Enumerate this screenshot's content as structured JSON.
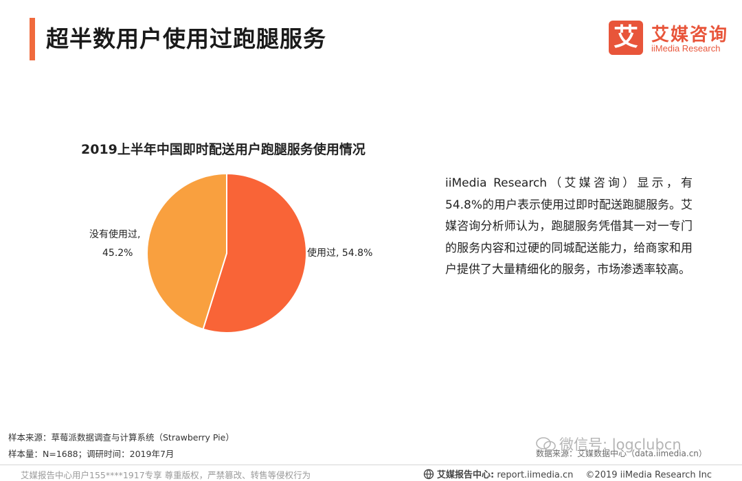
{
  "header": {
    "title": "超半数用户使用过跑腿服务"
  },
  "logo": {
    "mark": "艾",
    "name_cn": "艾媒咨询",
    "name_en": "iiMedia Research"
  },
  "chart_data": {
    "type": "pie",
    "title": "2019上半年中国即时配送用户跑腿服务使用情况",
    "slices": [
      {
        "label": "使用过, 54.8%",
        "value": 54.8,
        "color": "#f96437"
      },
      {
        "label_line1": "没有使用过,",
        "label_line2": "45.2%",
        "value": 45.2,
        "color": "#f9a03f"
      }
    ]
  },
  "description": "iiMedia Research（艾媒咨询）显示，有54.8%的用户表示使用过即时配送跑腿服务。艾媒咨询分析师认为，跑腿服务凭借其一对一专门的服务内容和过硬的同城配送能力，给商家和用户提供了大量精细化的服务，市场渗透率较高。",
  "source": {
    "line1": "样本来源：草莓派数据调查与计算系统（Strawberry Pie）",
    "line2": "样本量：N=1688；调研时间：2019年7月"
  },
  "watermark": {
    "text": "微信号: logclubcn",
    "faded_source": "数据来源：艾媒数据中心（data.iimedia.cn）"
  },
  "footer": {
    "left": "艾媒报告中心用户155****1917专享 尊重版权，严禁篡改、转售等侵权行为",
    "center_label": "艾媒报告中心:",
    "center_url": "report.iimedia.cn",
    "copyright": "©2019  iiMedia Research  Inc"
  }
}
